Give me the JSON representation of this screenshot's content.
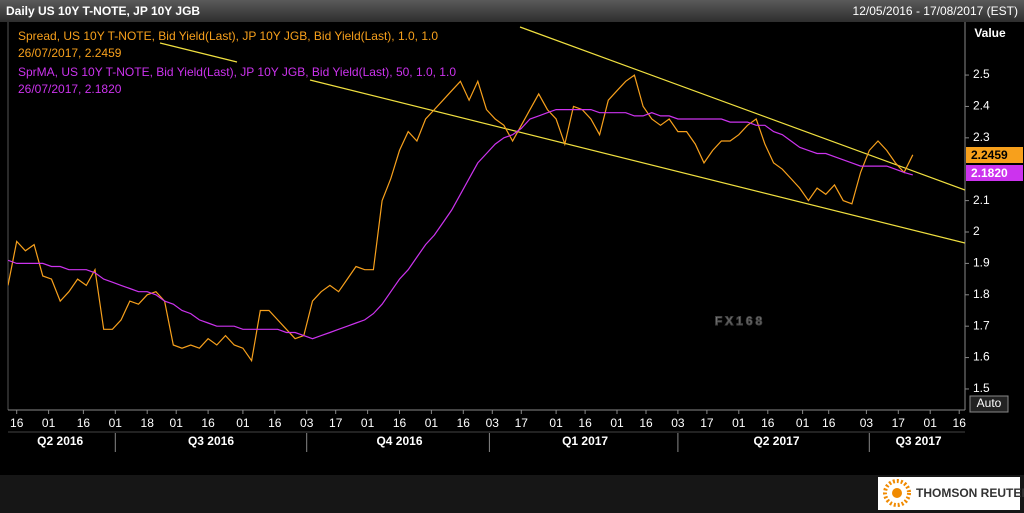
{
  "header": {
    "title": "Daily US 10Y T-NOTE, JP 10Y JGB",
    "date_range": "12/05/2016 - 17/08/2017 (EST)"
  },
  "chart_data": {
    "type": "line",
    "y_axis_label": "Value",
    "scale_button": "Auto",
    "watermark": "FX168",
    "x": [
      0,
      3,
      6,
      9,
      12,
      15,
      18,
      21,
      24,
      27,
      30,
      33,
      36,
      39,
      42,
      45,
      48,
      51,
      54,
      57,
      60,
      63,
      66,
      69,
      72,
      75,
      78,
      81,
      84,
      87,
      90,
      93,
      96,
      99,
      102,
      105,
      108,
      111,
      114,
      117,
      120,
      123,
      126,
      129,
      132,
      135,
      138,
      141,
      144,
      147,
      150,
      153,
      156,
      159,
      162,
      165,
      168,
      171,
      174,
      177,
      180,
      183,
      186,
      189,
      192,
      195,
      198,
      201,
      204,
      207,
      210,
      213,
      216,
      219,
      222,
      225,
      228,
      231,
      234,
      237,
      240,
      243,
      246,
      249,
      252,
      255,
      258,
      261,
      264,
      267,
      270,
      273,
      276,
      279,
      282,
      285,
      288,
      291,
      294,
      297,
      300,
      303,
      306,
      309,
      312
    ],
    "xlim": [
      0,
      330
    ],
    "xticks": [
      {
        "value": 3,
        "label": "16"
      },
      {
        "value": 14,
        "label": "01"
      },
      {
        "value": 26,
        "label": "16"
      },
      {
        "value": 37,
        "label": "01"
      },
      {
        "value": 48,
        "label": "18"
      },
      {
        "value": 58,
        "label": "01"
      },
      {
        "value": 69,
        "label": "16"
      },
      {
        "value": 81,
        "label": "01"
      },
      {
        "value": 92,
        "label": "16"
      },
      {
        "value": 103,
        "label": "03"
      },
      {
        "value": 113,
        "label": "17"
      },
      {
        "value": 124,
        "label": "01"
      },
      {
        "value": 135,
        "label": "16"
      },
      {
        "value": 146,
        "label": "01"
      },
      {
        "value": 157,
        "label": "16"
      },
      {
        "value": 167,
        "label": "03"
      },
      {
        "value": 177,
        "label": "17"
      },
      {
        "value": 189,
        "label": "01"
      },
      {
        "value": 199,
        "label": "16"
      },
      {
        "value": 210,
        "label": "01"
      },
      {
        "value": 220,
        "label": "16"
      },
      {
        "value": 231,
        "label": "03"
      },
      {
        "value": 241,
        "label": "17"
      },
      {
        "value": 252,
        "label": "01"
      },
      {
        "value": 262,
        "label": "16"
      },
      {
        "value": 274,
        "label": "01"
      },
      {
        "value": 283,
        "label": "16"
      },
      {
        "value": 296,
        "label": "03"
      },
      {
        "value": 307,
        "label": "17"
      },
      {
        "value": 318,
        "label": "01"
      },
      {
        "value": 328,
        "label": "16"
      }
    ],
    "quarter_ticks": [
      {
        "value": 18,
        "label": "Q2 2016"
      },
      {
        "value": 70,
        "label": "Q3 2016"
      },
      {
        "value": 135,
        "label": "Q4 2016"
      },
      {
        "value": 199,
        "label": "Q1 2017"
      },
      {
        "value": 265,
        "label": "Q2 2017"
      },
      {
        "value": 314,
        "label": "Q3 2017"
      }
    ],
    "quarter_bounds": [
      37,
      103,
      166,
      231,
      297
    ],
    "ylim": [
      1.433,
      2.669
    ],
    "yticks": [
      1.5,
      1.6,
      1.7,
      1.8,
      1.9,
      2,
      2.1,
      2.3,
      2.4,
      2.5
    ],
    "series": [
      {
        "name": "Spread, US 10Y T-NOTE, Bid Yield(Last), JP 10Y JGB, Bid Yield(Last),  1.0, 1.0",
        "legend_detail": "26/07/2017, 2.2459",
        "end_label": "2.2459",
        "color": "#f7a01c",
        "label_text_color": "#000000",
        "values": [
          1.83,
          1.97,
          1.94,
          1.96,
          1.86,
          1.85,
          1.78,
          1.81,
          1.85,
          1.83,
          1.88,
          1.69,
          1.69,
          1.72,
          1.78,
          1.77,
          1.8,
          1.81,
          1.78,
          1.64,
          1.63,
          1.64,
          1.63,
          1.66,
          1.64,
          1.67,
          1.64,
          1.63,
          1.59,
          1.75,
          1.75,
          1.72,
          1.69,
          1.66,
          1.67,
          1.78,
          1.81,
          1.83,
          1.81,
          1.85,
          1.89,
          1.88,
          1.88,
          2.1,
          2.17,
          2.26,
          2.32,
          2.29,
          2.36,
          2.39,
          2.42,
          2.45,
          2.48,
          2.42,
          2.48,
          2.39,
          2.36,
          2.34,
          2.29,
          2.34,
          2.39,
          2.44,
          2.39,
          2.36,
          2.28,
          2.4,
          2.39,
          2.36,
          2.31,
          2.42,
          2.45,
          2.48,
          2.5,
          2.4,
          2.36,
          2.34,
          2.36,
          2.32,
          2.32,
          2.28,
          2.22,
          2.26,
          2.29,
          2.29,
          2.31,
          2.34,
          2.36,
          2.28,
          2.22,
          2.2,
          2.17,
          2.14,
          2.1,
          2.14,
          2.12,
          2.15,
          2.1,
          2.09,
          2.19,
          2.26,
          2.29,
          2.26,
          2.22,
          2.19,
          2.2459
        ]
      },
      {
        "name": "SprMA, US 10Y T-NOTE, Bid Yield(Last), JP 10Y JGB, Bid Yield(Last),  50, 1.0, 1.0",
        "legend_detail": "26/07/2017, 2.1820",
        "end_label": "2.1820",
        "color": "#cc33ee",
        "label_text_color": "#ffffff",
        "values": [
          1.91,
          1.9,
          1.9,
          1.9,
          1.9,
          1.89,
          1.89,
          1.88,
          1.88,
          1.88,
          1.87,
          1.85,
          1.84,
          1.83,
          1.82,
          1.81,
          1.81,
          1.8,
          1.78,
          1.77,
          1.75,
          1.74,
          1.72,
          1.71,
          1.7,
          1.7,
          1.7,
          1.69,
          1.69,
          1.69,
          1.69,
          1.69,
          1.68,
          1.68,
          1.67,
          1.66,
          1.67,
          1.68,
          1.69,
          1.7,
          1.71,
          1.72,
          1.74,
          1.77,
          1.81,
          1.85,
          1.88,
          1.92,
          1.96,
          1.99,
          2.03,
          2.07,
          2.12,
          2.17,
          2.22,
          2.25,
          2.28,
          2.3,
          2.31,
          2.33,
          2.36,
          2.37,
          2.38,
          2.39,
          2.39,
          2.39,
          2.39,
          2.39,
          2.38,
          2.38,
          2.38,
          2.38,
          2.37,
          2.37,
          2.38,
          2.37,
          2.37,
          2.36,
          2.36,
          2.36,
          2.36,
          2.36,
          2.36,
          2.35,
          2.35,
          2.35,
          2.34,
          2.34,
          2.32,
          2.31,
          2.29,
          2.27,
          2.26,
          2.25,
          2.25,
          2.24,
          2.23,
          2.22,
          2.21,
          2.21,
          2.21,
          2.21,
          2.2,
          2.19,
          2.182
        ]
      }
    ]
  },
  "footer": {
    "brand": "THOMSON REUTERS"
  }
}
